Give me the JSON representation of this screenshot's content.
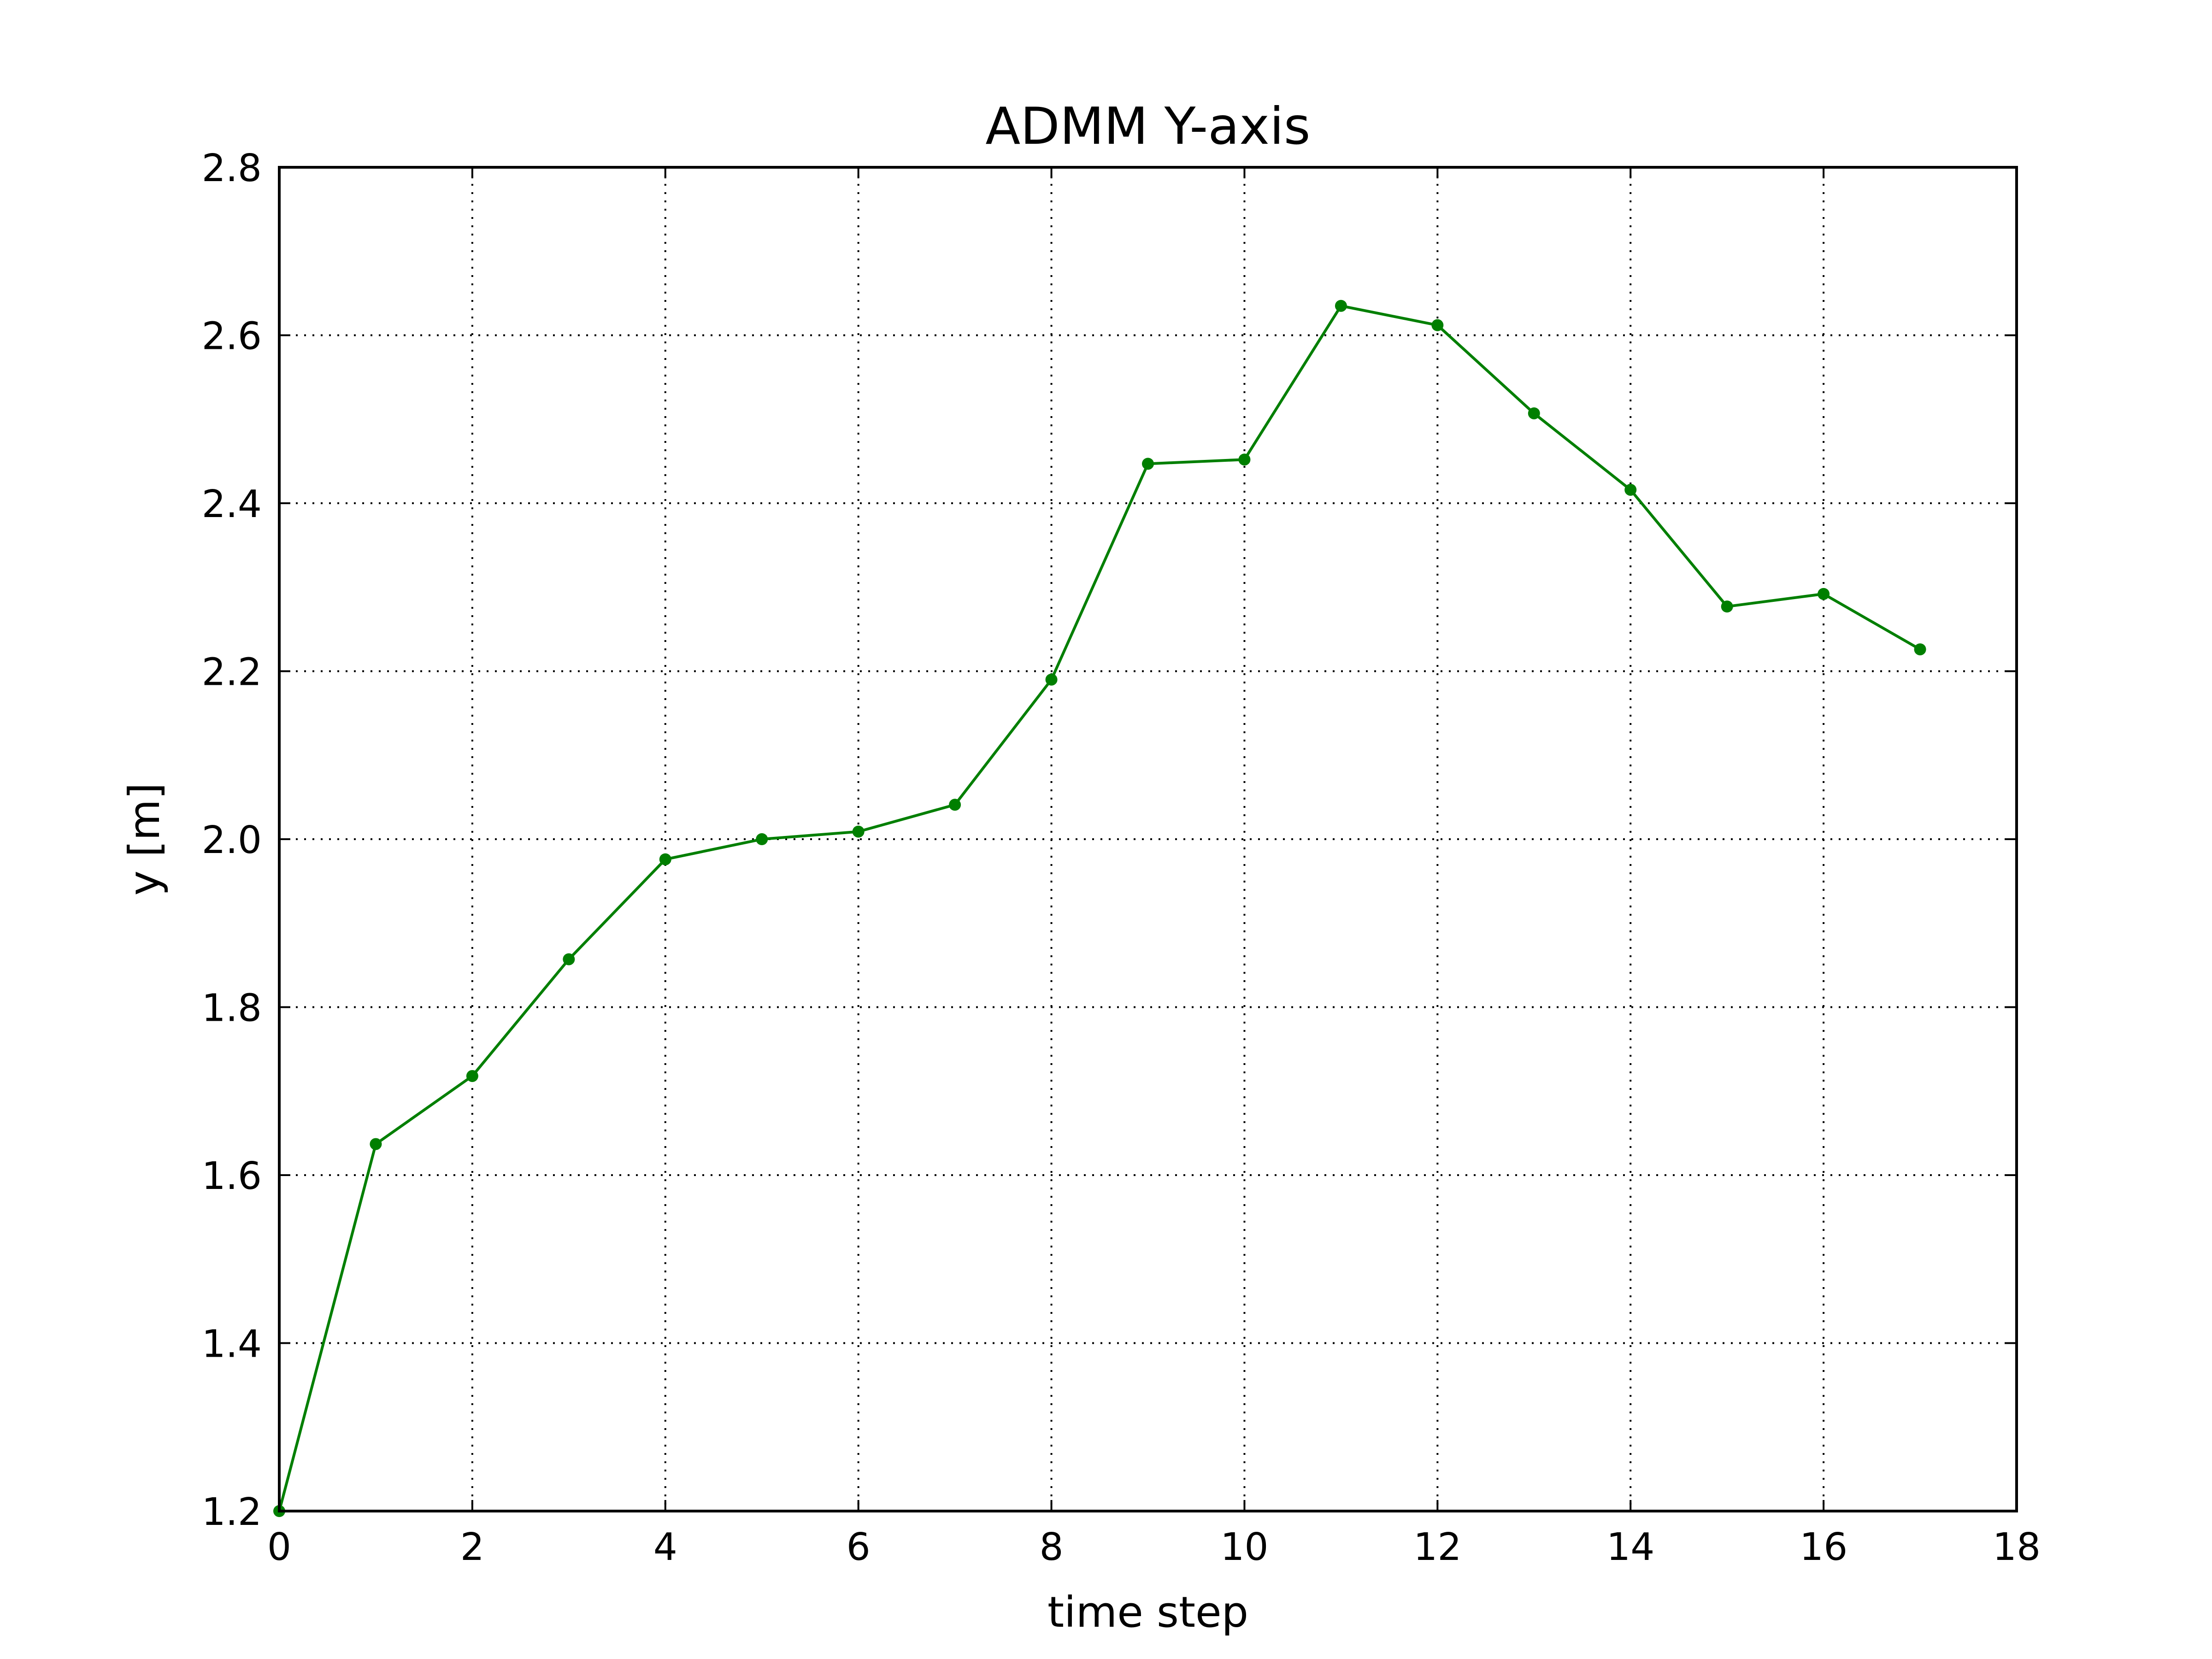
{
  "chart_data": {
    "type": "line",
    "title": "ADMM Y-axis",
    "xlabel": "time step",
    "ylabel": "y [m]",
    "xlim": [
      0,
      18
    ],
    "ylim": [
      1.2,
      2.8
    ],
    "xticks": [
      "0",
      "2",
      "4",
      "6",
      "8",
      "10",
      "12",
      "14",
      "16",
      "18"
    ],
    "yticks": [
      "1.2",
      "1.4",
      "1.6",
      "1.8",
      "2.0",
      "2.2",
      "2.4",
      "2.6",
      "2.8"
    ],
    "grid": true,
    "legend": "none",
    "series": [
      {
        "color": "#007f00",
        "marker": "circle",
        "x": [
          0,
          1,
          2,
          3,
          4,
          5,
          6,
          7,
          8,
          9,
          10,
          11,
          12,
          13,
          14,
          15,
          16,
          17
        ],
        "values": [
          1.2,
          1.637,
          1.718,
          1.857,
          1.976,
          2.0,
          2.009,
          2.041,
          2.19,
          2.447,
          2.452,
          2.635,
          2.612,
          2.507,
          2.416,
          2.277,
          2.292,
          2.226
        ]
      }
    ]
  }
}
